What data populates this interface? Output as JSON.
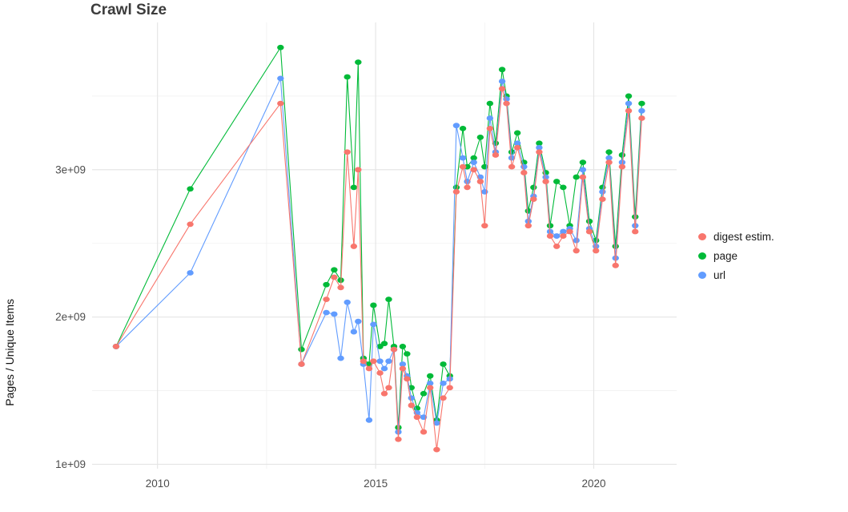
{
  "title": "Crawl Size",
  "chart_data": {
    "type": "line",
    "title": "Crawl Size",
    "xlabel": "",
    "ylabel": "Pages / Unique Items",
    "values_scale": 1000000000,
    "values_unit": "pages (×1e9)",
    "grid": true,
    "legend_position": "right",
    "xlim": [
      2008.5,
      2021.9
    ],
    "ylim": [
      0.97,
      4.0
    ],
    "x_ticks": [
      {
        "value": 2010,
        "label": "2010"
      },
      {
        "value": 2015,
        "label": "2015"
      },
      {
        "value": 2020,
        "label": "2020"
      }
    ],
    "y_ticks": [
      {
        "value": 1,
        "label": "1e+09"
      },
      {
        "value": 2,
        "label": "2e+09"
      },
      {
        "value": 3,
        "label": "3e+09"
      }
    ],
    "x": [
      2009.05,
      2010.75,
      2012.82,
      2013.3,
      2013.87,
      2014.05,
      2014.2,
      2014.35,
      2014.5,
      2014.6,
      2014.72,
      2014.85,
      2014.95,
      2015.1,
      2015.2,
      2015.3,
      2015.42,
      2015.52,
      2015.62,
      2015.72,
      2015.82,
      2015.95,
      2016.1,
      2016.25,
      2016.4,
      2016.55,
      2016.7,
      2016.85,
      2017.0,
      2017.1,
      2017.25,
      2017.4,
      2017.5,
      2017.62,
      2017.75,
      2017.9,
      2018.0,
      2018.12,
      2018.25,
      2018.4,
      2018.5,
      2018.62,
      2018.75,
      2018.9,
      2019.0,
      2019.15,
      2019.3,
      2019.45,
      2019.6,
      2019.75,
      2019.9,
      2020.05,
      2020.2,
      2020.35,
      2020.5,
      2020.65,
      2020.8,
      2020.95,
      2021.1
    ],
    "series": [
      {
        "name": "digest estim.",
        "color": "#F8766D",
        "values": [
          1.8,
          2.63,
          3.45,
          1.68,
          2.12,
          2.27,
          2.2,
          3.12,
          2.48,
          3.0,
          1.7,
          1.65,
          1.7,
          1.62,
          1.48,
          1.52,
          1.78,
          1.17,
          1.65,
          1.58,
          1.4,
          1.32,
          1.22,
          1.52,
          1.1,
          1.45,
          1.52,
          2.85,
          3.02,
          2.88,
          3.0,
          2.92,
          2.62,
          3.28,
          3.1,
          3.55,
          3.45,
          3.02,
          3.15,
          2.98,
          2.62,
          2.8,
          3.12,
          2.92,
          2.55,
          2.48,
          2.55,
          2.58,
          2.45,
          2.95,
          2.58,
          2.45,
          2.8,
          3.05,
          2.35,
          3.02,
          3.4,
          2.58,
          3.35
        ]
      },
      {
        "name": "page",
        "color": "#00BA38",
        "values": [
          1.8,
          2.87,
          3.83,
          1.78,
          2.22,
          2.32,
          2.25,
          3.63,
          2.88,
          3.73,
          1.72,
          1.68,
          2.08,
          1.8,
          1.82,
          2.12,
          1.8,
          1.25,
          1.8,
          1.75,
          1.52,
          1.38,
          1.48,
          1.6,
          1.3,
          1.68,
          1.6,
          2.88,
          3.28,
          3.02,
          3.08,
          3.22,
          3.02,
          3.45,
          3.18,
          3.68,
          3.5,
          3.12,
          3.25,
          3.05,
          2.72,
          2.88,
          3.18,
          2.98,
          2.62,
          2.92,
          2.88,
          2.62,
          2.95,
          3.05,
          2.65,
          2.52,
          2.88,
          3.12,
          2.48,
          3.1,
          3.5,
          2.68,
          3.45
        ]
      },
      {
        "name": "url",
        "color": "#619CFF",
        "values": [
          1.8,
          2.3,
          3.62,
          1.68,
          2.03,
          2.02,
          1.72,
          2.1,
          1.9,
          1.97,
          1.68,
          1.3,
          1.95,
          1.7,
          1.65,
          1.7,
          1.78,
          1.22,
          1.68,
          1.6,
          1.45,
          1.35,
          1.32,
          1.55,
          1.28,
          1.55,
          1.58,
          3.3,
          3.08,
          2.92,
          3.05,
          2.95,
          2.85,
          3.35,
          3.12,
          3.6,
          3.48,
          3.08,
          3.18,
          3.02,
          2.65,
          2.82,
          3.15,
          2.95,
          2.58,
          2.55,
          2.58,
          2.6,
          2.52,
          3.0,
          2.6,
          2.48,
          2.85,
          3.08,
          2.4,
          3.05,
          3.45,
          2.62,
          3.4
        ]
      }
    ]
  }
}
